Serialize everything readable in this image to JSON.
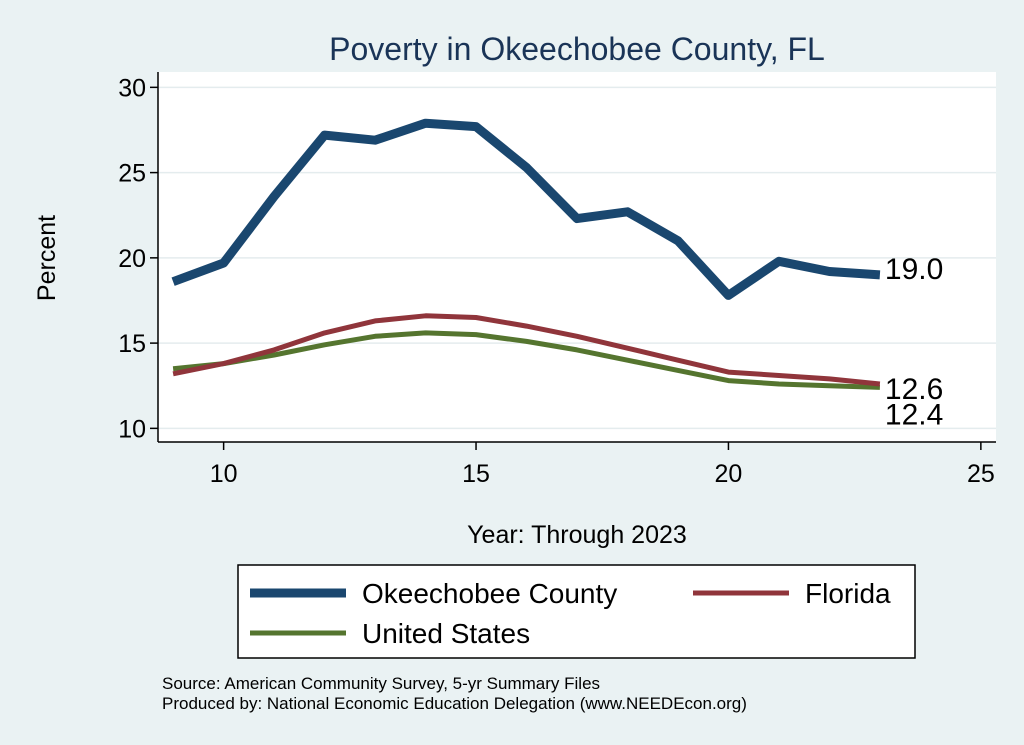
{
  "chart_data": {
    "type": "line",
    "title": "Poverty in Okeechobee County, FL",
    "xlabel": "Year: Through 2023",
    "ylabel": "Percent",
    "xlim": [
      8.7,
      25.3
    ],
    "ylim": [
      9.2,
      30.9
    ],
    "xticks": [
      10,
      15,
      20,
      25
    ],
    "yticks": [
      10,
      15,
      20,
      25,
      30
    ],
    "grid": true,
    "legend_position": "bottom",
    "series": [
      {
        "name": "Okeechobee County",
        "color": "#1a476f",
        "x": [
          9,
          10,
          11,
          12,
          13,
          14,
          15,
          16,
          17,
          18,
          19,
          20,
          21,
          22,
          23
        ],
        "y": [
          18.6,
          19.7,
          23.6,
          27.2,
          26.9,
          27.9,
          27.7,
          25.3,
          22.3,
          22.7,
          21.0,
          17.8,
          19.8,
          19.2,
          19.0
        ],
        "end_label": "19.0"
      },
      {
        "name": "Florida",
        "color": "#90353b",
        "x": [
          9,
          10,
          11,
          12,
          13,
          14,
          15,
          16,
          17,
          18,
          19,
          20,
          21,
          22,
          23
        ],
        "y": [
          13.2,
          13.8,
          14.6,
          15.6,
          16.3,
          16.6,
          16.5,
          16.0,
          15.4,
          14.7,
          14.0,
          13.3,
          13.1,
          12.9,
          12.6
        ],
        "end_label": "12.6"
      },
      {
        "name": "United States",
        "color": "#55752f",
        "x": [
          9,
          10,
          11,
          12,
          13,
          14,
          15,
          16,
          17,
          18,
          19,
          20,
          21,
          22,
          23
        ],
        "y": [
          13.5,
          13.8,
          14.3,
          14.9,
          15.4,
          15.6,
          15.5,
          15.1,
          14.6,
          14.0,
          13.4,
          12.8,
          12.6,
          12.5,
          12.4
        ],
        "end_label": "12.4"
      }
    ],
    "notes": [
      "Source: American Community Survey, 5-yr Summary Files",
      "Produced by: National Economic Education Delegation (www.NEEDEcon.org)"
    ]
  }
}
